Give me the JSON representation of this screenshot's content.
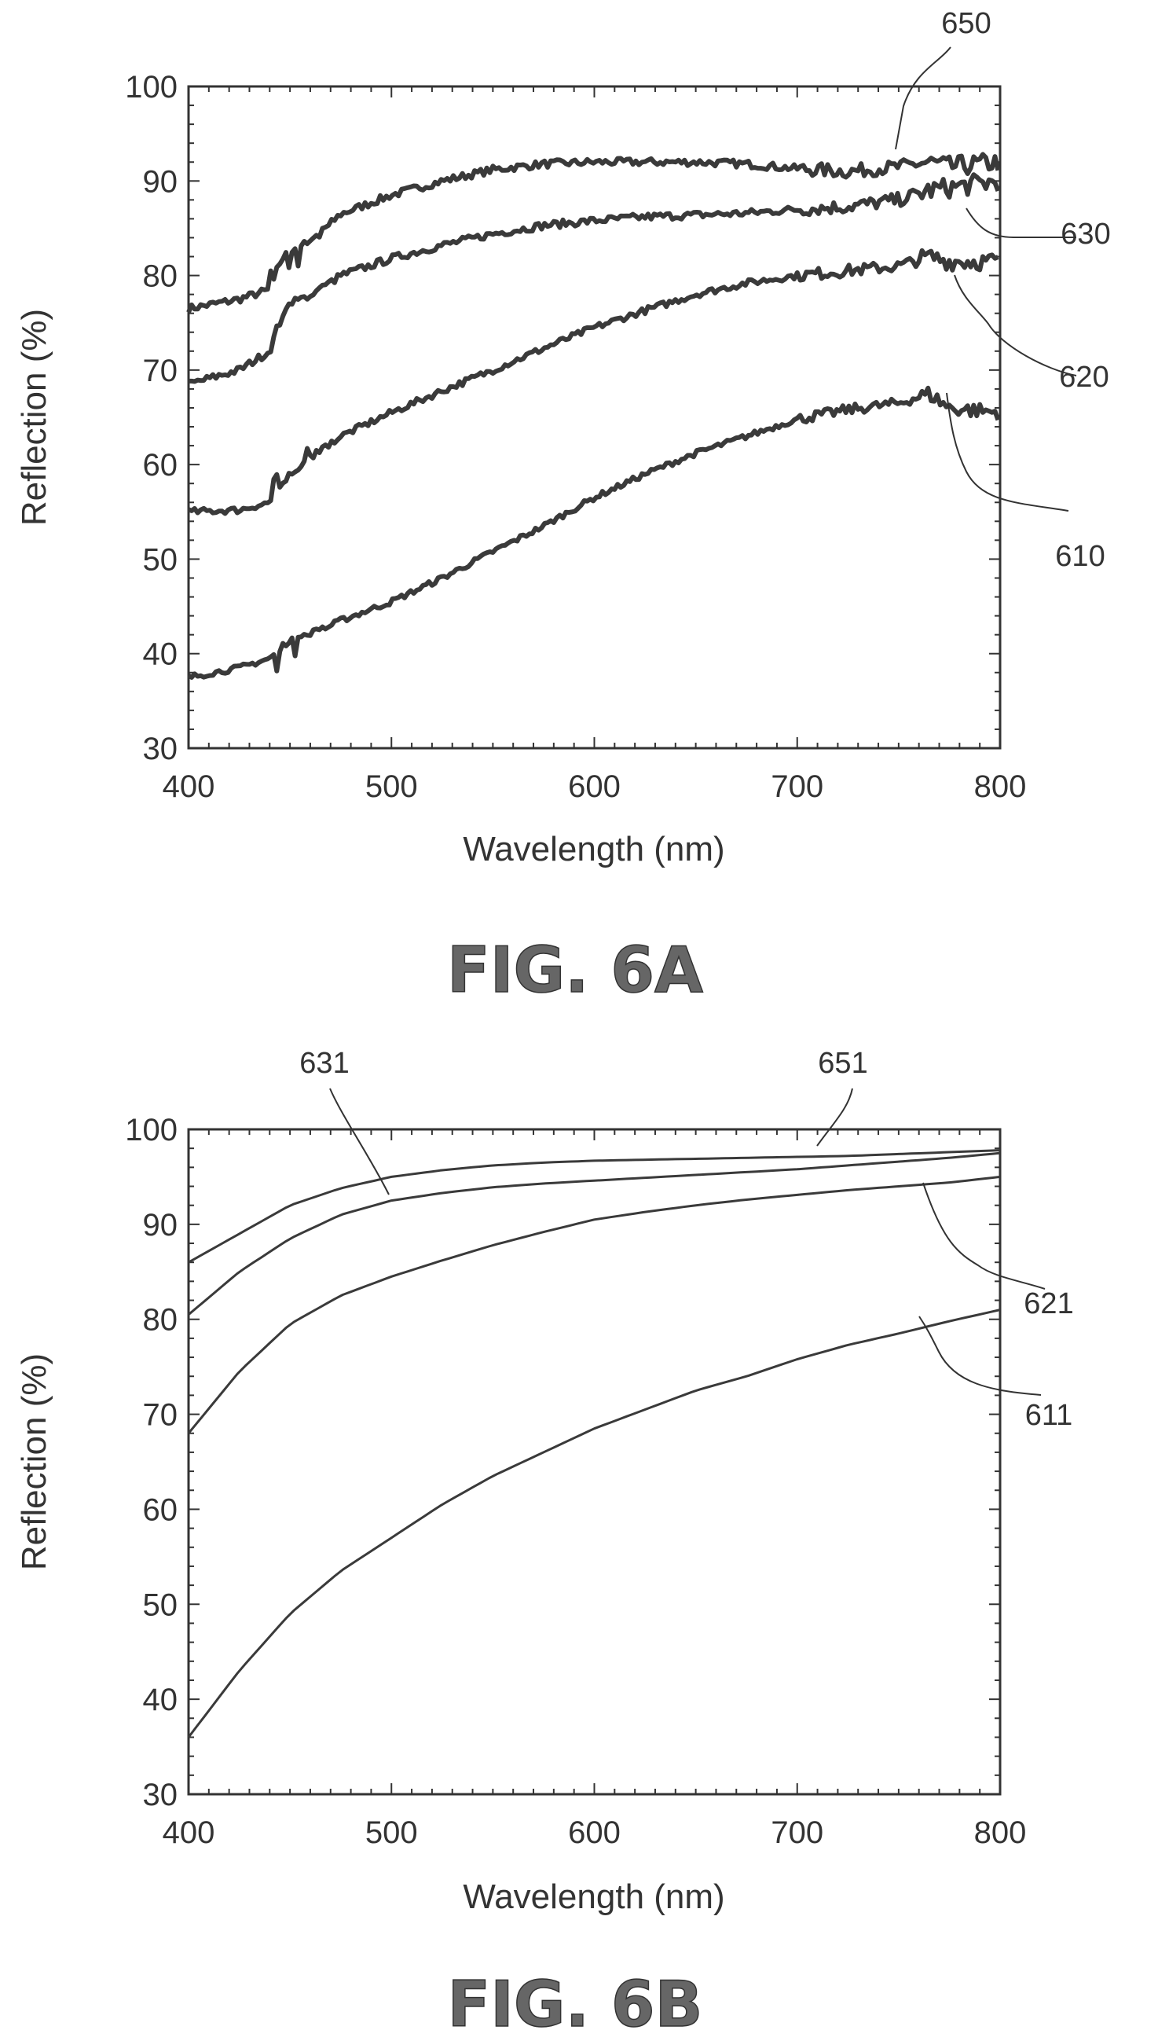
{
  "chart_data": [
    {
      "type": "line",
      "figure_label": "FIG. 6A",
      "xlabel": "Wavelength (nm)",
      "ylabel": "Reflection (%)",
      "xlim": [
        400,
        800
      ],
      "ylim": [
        30,
        100
      ],
      "x_ticks": [
        "400",
        "500",
        "600",
        "700",
        "800"
      ],
      "y_ticks": [
        "30",
        "40",
        "50",
        "60",
        "70",
        "80",
        "90",
        "100"
      ],
      "grid": false,
      "legend": "none",
      "x": [
        400,
        425,
        440,
        445,
        450,
        465,
        475,
        500,
        525,
        550,
        575,
        600,
        625,
        650,
        675,
        700,
        725,
        750,
        765,
        775,
        800
      ],
      "series": [
        {
          "name": "650",
          "label_value": "650",
          "noise": 0.8,
          "values": [
            76.5,
            77.5,
            78.5,
            81.5,
            82.5,
            84.5,
            86.5,
            88.5,
            90.0,
            91.2,
            91.8,
            92.0,
            92.0,
            92.0,
            91.8,
            91.3,
            91.0,
            91.5,
            92.0,
            91.5,
            92.0
          ]
        },
        {
          "name": "630",
          "label_value": "630",
          "noise": 0.8,
          "values": [
            68.5,
            70.0,
            72.0,
            75.0,
            77.0,
            78.5,
            80.0,
            81.8,
            83.2,
            84.4,
            85.3,
            85.8,
            86.2,
            86.4,
            86.6,
            87.0,
            87.3,
            88.0,
            89.0,
            89.3,
            90.0
          ]
        },
        {
          "name": "620",
          "label_value": "620",
          "noise": 0.7,
          "values": [
            55.0,
            55.2,
            56.0,
            57.5,
            59.0,
            61.5,
            63.0,
            65.5,
            67.8,
            70.0,
            72.3,
            74.5,
            76.3,
            78.0,
            79.2,
            80.0,
            80.5,
            81.0,
            82.0,
            81.5,
            81.5
          ]
        },
        {
          "name": "610",
          "label_value": "610",
          "noise": 0.6,
          "values": [
            37.5,
            38.5,
            39.5,
            40.5,
            41.5,
            42.5,
            43.5,
            45.5,
            48.0,
            50.8,
            53.5,
            56.5,
            59.0,
            61.2,
            63.0,
            64.8,
            65.8,
            66.5,
            67.5,
            66.0,
            65.5
          ]
        }
      ],
      "annotations": [
        "650",
        "630",
        "620",
        "610"
      ]
    },
    {
      "type": "line",
      "figure_label": "FIG. 6B",
      "xlabel": "Wavelength (nm)",
      "ylabel": "Reflection (%)",
      "xlim": [
        400,
        800
      ],
      "ylim": [
        30,
        100
      ],
      "x_ticks": [
        "400",
        "500",
        "600",
        "700",
        "800"
      ],
      "y_ticks": [
        "30",
        "40",
        "50",
        "60",
        "70",
        "80",
        "90",
        "100"
      ],
      "grid": false,
      "legend": "none",
      "x": [
        400,
        425,
        450,
        475,
        500,
        525,
        550,
        575,
        600,
        625,
        650,
        675,
        700,
        725,
        750,
        775,
        800
      ],
      "series": [
        {
          "name": "651",
          "label_value": "651",
          "values": [
            86.0,
            89.0,
            92.0,
            93.8,
            95.0,
            95.7,
            96.2,
            96.5,
            96.7,
            96.8,
            96.9,
            97.0,
            97.1,
            97.2,
            97.4,
            97.6,
            97.8
          ]
        },
        {
          "name": "631",
          "label_value": "631",
          "values": [
            80.5,
            85.0,
            88.5,
            91.0,
            92.5,
            93.3,
            93.9,
            94.3,
            94.6,
            94.9,
            95.2,
            95.5,
            95.8,
            96.2,
            96.6,
            97.0,
            97.5
          ]
        },
        {
          "name": "621",
          "label_value": "621",
          "values": [
            68.0,
            74.5,
            79.5,
            82.5,
            84.5,
            86.2,
            87.8,
            89.2,
            90.5,
            91.3,
            92.0,
            92.6,
            93.1,
            93.6,
            94.0,
            94.4,
            95.0
          ]
        },
        {
          "name": "611",
          "label_value": "611",
          "values": [
            36.0,
            43.0,
            49.0,
            53.5,
            57.0,
            60.5,
            63.5,
            66.0,
            68.5,
            70.5,
            72.5,
            74.0,
            75.8,
            77.3,
            78.5,
            79.8,
            81.0
          ]
        }
      ],
      "annotations": [
        "651",
        "631",
        "621",
        "611"
      ]
    }
  ],
  "colors": {
    "axis": "#333333",
    "curve": "#3a3a3a",
    "text": "#333333"
  }
}
